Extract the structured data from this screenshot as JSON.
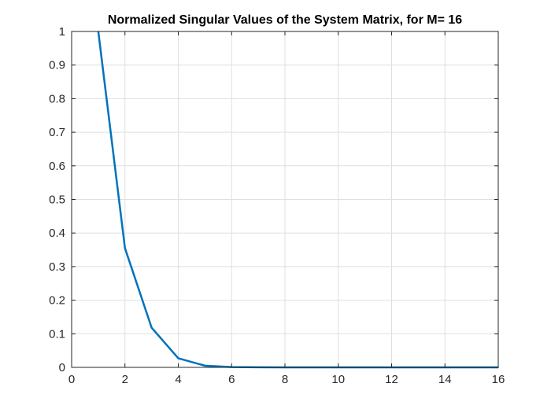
{
  "chart_data": {
    "type": "line",
    "title": "Normalized Singular Values of the System Matrix, for M= 16",
    "xlabel": "",
    "ylabel": "",
    "xlim": [
      0,
      16
    ],
    "ylim": [
      0,
      1
    ],
    "xticks": [
      0,
      2,
      4,
      6,
      8,
      10,
      12,
      14,
      16
    ],
    "xtick_labels": [
      "0",
      "2",
      "4",
      "6",
      "8",
      "10",
      "12",
      "14",
      "16"
    ],
    "yticks": [
      0,
      0.1,
      0.2,
      0.3,
      0.4,
      0.5,
      0.6,
      0.7,
      0.8,
      0.9,
      1
    ],
    "ytick_labels": [
      "0",
      "0.1",
      "0.2",
      "0.3",
      "0.4",
      "0.5",
      "0.6",
      "0.7",
      "0.8",
      "0.9",
      "1"
    ],
    "grid": true,
    "legend": "none",
    "series": [
      {
        "color": "#0072bd",
        "x": [
          1,
          2,
          3,
          4,
          5,
          6,
          7,
          8,
          9,
          10,
          11,
          12,
          13,
          14,
          15,
          16
        ],
        "y": [
          1,
          0.355,
          0.118,
          0.027,
          0.005,
          0.001,
          0.0003,
          0.0001,
          0,
          0,
          0,
          0,
          0,
          0,
          0,
          0
        ]
      }
    ]
  }
}
